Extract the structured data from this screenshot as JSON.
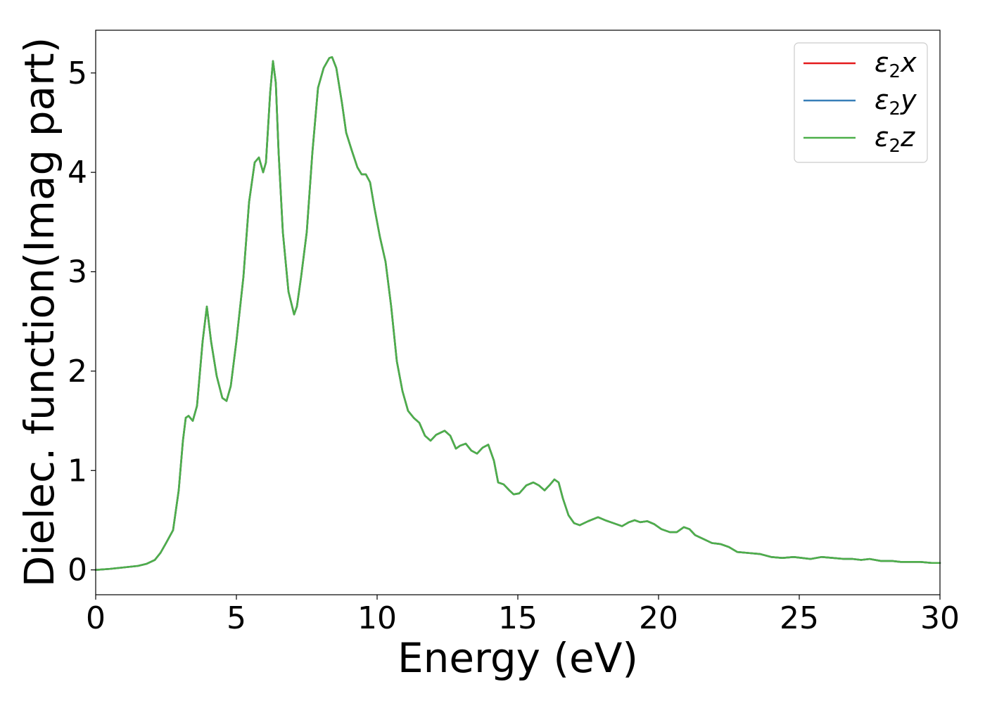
{
  "chart_data": {
    "type": "line",
    "title": "",
    "xlabel": "Energy (eV)",
    "ylabel": "Dielec. function(Imag part)",
    "xlim": [
      0,
      30
    ],
    "ylim": [
      -0.25,
      5.43
    ],
    "xticks": [
      0,
      5,
      10,
      15,
      20,
      25,
      30
    ],
    "xtick_labels": [
      "0",
      "5",
      "10",
      "15",
      "20",
      "25",
      "30"
    ],
    "yticks": [
      0,
      1,
      2,
      3,
      4,
      5
    ],
    "ytick_labels": [
      "0",
      "1",
      "2",
      "3",
      "4",
      "5"
    ],
    "grid": false,
    "legend_position": "top-right",
    "series": [
      {
        "name_main": "ε",
        "name_sub": "2",
        "name_suffix": "x",
        "color": "#e41a1c"
      },
      {
        "name_main": "ε",
        "name_sub": "2",
        "name_suffix": "y",
        "color": "#377eb8"
      },
      {
        "name_main": "ε",
        "name_sub": "2",
        "name_suffix": "z",
        "color": "#4daf4a"
      }
    ],
    "x": [
      0,
      0.5,
      1.0,
      1.5,
      1.8,
      2.1,
      2.3,
      2.5,
      2.75,
      2.95,
      3.1,
      3.2,
      3.3,
      3.45,
      3.6,
      3.8,
      3.95,
      4.1,
      4.3,
      4.5,
      4.65,
      4.8,
      5.0,
      5.25,
      5.45,
      5.65,
      5.8,
      5.95,
      6.05,
      6.2,
      6.3,
      6.4,
      6.5,
      6.65,
      6.85,
      7.05,
      7.15,
      7.3,
      7.5,
      7.7,
      7.9,
      8.1,
      8.3,
      8.4,
      8.55,
      8.75,
      8.9,
      9.1,
      9.3,
      9.45,
      9.6,
      9.75,
      9.9,
      10.1,
      10.3,
      10.5,
      10.7,
      10.9,
      11.1,
      11.3,
      11.5,
      11.7,
      11.9,
      12.1,
      12.4,
      12.6,
      12.8,
      12.95,
      13.15,
      13.35,
      13.55,
      13.75,
      13.95,
      14.15,
      14.3,
      14.5,
      14.7,
      14.85,
      15.05,
      15.3,
      15.55,
      15.75,
      15.95,
      16.15,
      16.3,
      16.45,
      16.6,
      16.8,
      17.0,
      17.2,
      17.5,
      17.85,
      18.1,
      18.4,
      18.7,
      18.95,
      19.15,
      19.35,
      19.6,
      19.85,
      20.1,
      20.4,
      20.65,
      20.9,
      21.1,
      21.3,
      21.6,
      21.9,
      22.2,
      22.5,
      22.8,
      23.2,
      23.6,
      24.0,
      24.4,
      24.8,
      25.1,
      25.4,
      25.8,
      26.2,
      26.6,
      26.9,
      27.2,
      27.5,
      27.9,
      28.3,
      28.6,
      28.9,
      29.3,
      29.7,
      30.0
    ],
    "values": [
      0.0,
      0.01,
      0.025,
      0.04,
      0.06,
      0.1,
      0.17,
      0.27,
      0.4,
      0.8,
      1.3,
      1.53,
      1.55,
      1.5,
      1.65,
      2.3,
      2.65,
      2.3,
      1.95,
      1.73,
      1.7,
      1.85,
      2.3,
      2.95,
      3.7,
      4.1,
      4.15,
      4.0,
      4.1,
      4.8,
      5.12,
      4.9,
      4.2,
      3.4,
      2.8,
      2.57,
      2.65,
      2.95,
      3.4,
      4.2,
      4.85,
      5.05,
      5.15,
      5.16,
      5.05,
      4.7,
      4.4,
      4.22,
      4.05,
      3.98,
      3.98,
      3.9,
      3.65,
      3.35,
      3.1,
      2.65,
      2.1,
      1.8,
      1.6,
      1.53,
      1.48,
      1.35,
      1.3,
      1.36,
      1.4,
      1.35,
      1.22,
      1.25,
      1.27,
      1.2,
      1.17,
      1.23,
      1.26,
      1.1,
      0.88,
      0.86,
      0.8,
      0.76,
      0.77,
      0.85,
      0.88,
      0.85,
      0.8,
      0.86,
      0.91,
      0.88,
      0.72,
      0.55,
      0.47,
      0.45,
      0.49,
      0.53,
      0.5,
      0.47,
      0.44,
      0.48,
      0.5,
      0.48,
      0.49,
      0.46,
      0.41,
      0.38,
      0.38,
      0.43,
      0.41,
      0.35,
      0.31,
      0.27,
      0.26,
      0.23,
      0.18,
      0.17,
      0.16,
      0.13,
      0.12,
      0.13,
      0.12,
      0.11,
      0.13,
      0.12,
      0.11,
      0.11,
      0.1,
      0.11,
      0.09,
      0.09,
      0.08,
      0.08,
      0.08,
      0.07,
      0.07
    ]
  }
}
